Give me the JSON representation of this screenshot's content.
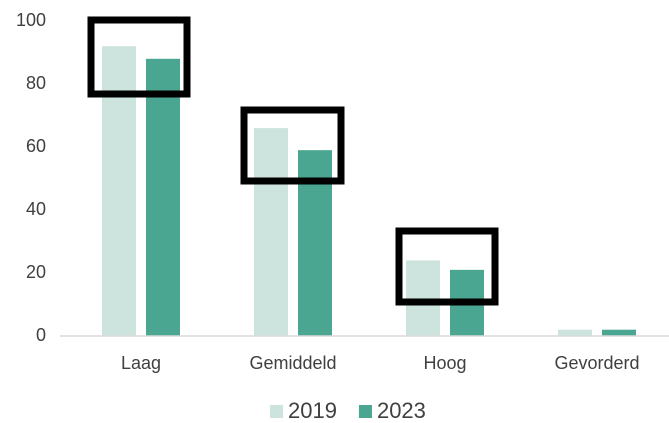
{
  "chart_data": {
    "type": "bar",
    "categories": [
      "Laag",
      "Gemiddeld",
      "Hoog",
      "Gevorderd"
    ],
    "series": [
      {
        "name": "2019",
        "color": "#cde3dd",
        "values": [
          92,
          66,
          24,
          2
        ]
      },
      {
        "name": "2023",
        "color": "#4aa690",
        "values": [
          88,
          59,
          21,
          2
        ]
      }
    ],
    "ylim": [
      0,
      100
    ],
    "yticks": [
      0,
      20,
      40,
      60,
      80,
      100
    ],
    "grid": false
  }
}
